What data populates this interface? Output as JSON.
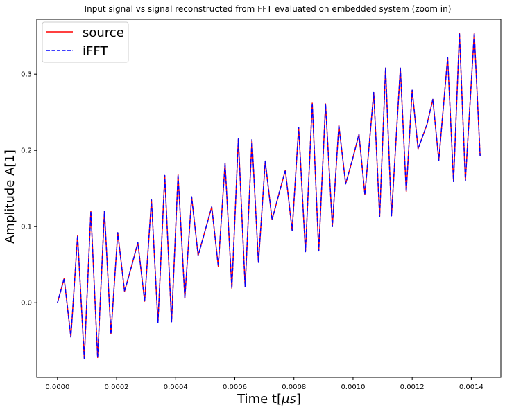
{
  "chart_data": {
    "type": "line",
    "title": "Input signal vs signal reconstructed from FFT evaluated on embedded system (zoom in)",
    "xlabel": "Time t[",
    "xlabel_unit_symbol": "μs",
    "xlabel_suffix": "]",
    "ylabel": "Amplitude A[1]",
    "xlim": [
      -7e-05,
      0.0015
    ],
    "ylim": [
      -0.098,
      0.372
    ],
    "xticks": [
      "0.0000",
      "0.0002",
      "0.0004",
      "0.0006",
      "0.0008",
      "0.0010",
      "0.0012",
      "0.0014"
    ],
    "xtick_values": [
      0,
      0.0002,
      0.0004,
      0.0006,
      0.0008,
      0.001,
      0.0012,
      0.0014
    ],
    "yticks": [
      "0.0",
      "0.1",
      "0.2",
      "0.3"
    ],
    "ytick_values": [
      0,
      0.1,
      0.2,
      0.3
    ],
    "legend_position": "top-left",
    "series": [
      {
        "name": "source",
        "color": "#ff0000",
        "style": "solid",
        "x": [
          0,
          2.27e-05,
          4.54e-05,
          6.81e-05,
          9.07e-05,
          0.000113,
          0.000136,
          0.000159,
          0.000181,
          0.000204,
          0.000227,
          0.00025,
          0.000272,
          0.000295,
          0.000318,
          0.00034,
          0.000363,
          0.000386,
          0.000408,
          0.000431,
          0.000454,
          0.000476,
          0.000499,
          0.000522,
          0.000544,
          0.000567,
          0.00059,
          0.000612,
          0.000635,
          0.000658,
          0.00068,
          0.000703,
          0.000726,
          0.000748,
          0.000771,
          0.000794,
          0.000816,
          0.000839,
          0.000862,
          0.000884,
          0.000907,
          0.00093,
          0.000952,
          0.000975,
          0.000998,
          0.00102,
          0.00104,
          0.00107,
          0.00109,
          0.00111,
          0.00113,
          0.00116,
          0.00118,
          0.0012,
          0.00122,
          0.00125,
          0.00127,
          0.00129,
          0.00132,
          0.00134,
          0.00136,
          0.00138,
          0.00141,
          0.00143
        ],
        "values": [
          0.0,
          0.032,
          -0.045,
          0.088,
          -0.073,
          0.12,
          -0.072,
          0.12,
          -0.041,
          0.092,
          0.015,
          0.047,
          0.079,
          0.002,
          0.135,
          -0.026,
          0.167,
          -0.025,
          0.168,
          0.006,
          0.139,
          0.062,
          0.094,
          0.126,
          0.048,
          0.183,
          0.019,
          0.215,
          0.021,
          0.214,
          0.053,
          0.186,
          0.109,
          0.141,
          0.174,
          0.095,
          0.23,
          0.067,
          0.262,
          0.068,
          0.261,
          0.1,
          0.233,
          0.156,
          0.188,
          0.221,
          0.142,
          0.276,
          0.113,
          0.308,
          0.114,
          0.308,
          0.146,
          0.279,
          0.202,
          0.234,
          0.267,
          0.187,
          0.322,
          0.159,
          0.354,
          0.16,
          0.354,
          0.192
        ]
      },
      {
        "name": "iFFT",
        "color": "#0000ff",
        "style": "dashed",
        "x": [
          0,
          2.27e-05,
          4.54e-05,
          6.81e-05,
          9.07e-05,
          0.000113,
          0.000136,
          0.000159,
          0.000181,
          0.000204,
          0.000227,
          0.00025,
          0.000272,
          0.000295,
          0.000318,
          0.00034,
          0.000363,
          0.000386,
          0.000408,
          0.000431,
          0.000454,
          0.000476,
          0.000499,
          0.000522,
          0.000544,
          0.000567,
          0.00059,
          0.000612,
          0.000635,
          0.000658,
          0.00068,
          0.000703,
          0.000726,
          0.000748,
          0.000771,
          0.000794,
          0.000816,
          0.000839,
          0.000862,
          0.000884,
          0.000907,
          0.00093,
          0.000952,
          0.000975,
          0.000998,
          0.00102,
          0.00104,
          0.00107,
          0.00109,
          0.00111,
          0.00113,
          0.00116,
          0.00118,
          0.0012,
          0.00122,
          0.00125,
          0.00127,
          0.00129,
          0.00132,
          0.00134,
          0.00136,
          0.00138,
          0.00141,
          0.00143
        ],
        "values": [
          0.0,
          0.032,
          -0.045,
          0.088,
          -0.073,
          0.12,
          -0.072,
          0.12,
          -0.041,
          0.092,
          0.015,
          0.047,
          0.079,
          0.002,
          0.135,
          -0.026,
          0.167,
          -0.025,
          0.168,
          0.006,
          0.139,
          0.062,
          0.094,
          0.126,
          0.048,
          0.183,
          0.019,
          0.215,
          0.021,
          0.214,
          0.053,
          0.186,
          0.109,
          0.141,
          0.174,
          0.095,
          0.23,
          0.067,
          0.262,
          0.068,
          0.261,
          0.1,
          0.233,
          0.156,
          0.188,
          0.221,
          0.142,
          0.276,
          0.113,
          0.308,
          0.114,
          0.308,
          0.146,
          0.279,
          0.202,
          0.234,
          0.267,
          0.187,
          0.322,
          0.159,
          0.354,
          0.16,
          0.354,
          0.192
        ]
      }
    ]
  }
}
